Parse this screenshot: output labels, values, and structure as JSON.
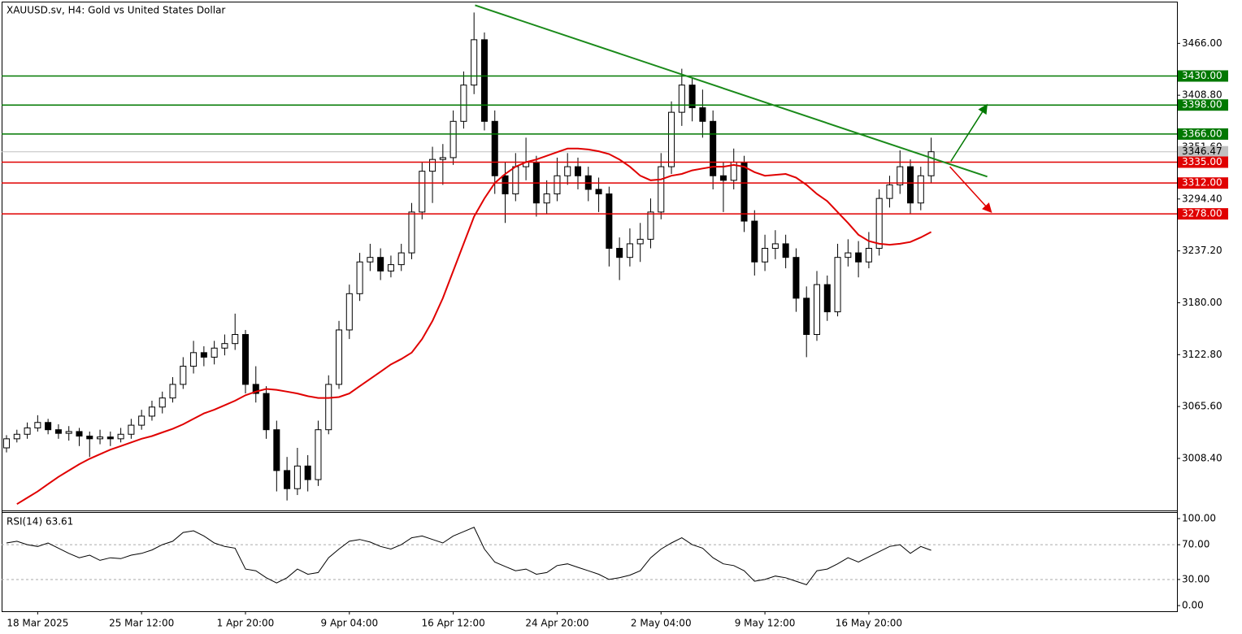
{
  "chart_data": [
    {
      "type": "candlestick",
      "title": "XAUUSD.sv, H4:  Gold vs United States Dollar",
      "categories": [
        null,
        null,
        null,
        "18 Mar 2025",
        null,
        null,
        null,
        null,
        null,
        null,
        null,
        null,
        null,
        "25 Mar 12:00",
        null,
        null,
        null,
        null,
        null,
        null,
        null,
        null,
        null,
        "1 Apr 20:00",
        null,
        null,
        null,
        null,
        null,
        null,
        null,
        null,
        null,
        "9 Apr 04:00",
        null,
        null,
        null,
        null,
        null,
        null,
        null,
        null,
        null,
        "16 Apr 12:00",
        null,
        null,
        null,
        null,
        null,
        null,
        null,
        null,
        null,
        "24 Apr 20:00",
        null,
        null,
        null,
        null,
        null,
        null,
        null,
        null,
        null,
        "2 May 04:00",
        null,
        null,
        null,
        null,
        null,
        null,
        null,
        null,
        null,
        "9 May 12:00",
        null,
        null,
        null,
        null,
        null,
        null,
        null,
        null,
        null,
        "16 May 20:00",
        null,
        null,
        null,
        null,
        null,
        null
      ],
      "ohlc": [
        [
          3020,
          3034,
          3015,
          3030
        ],
        [
          3030,
          3040,
          3026,
          3035
        ],
        [
          3035,
          3048,
          3030,
          3042
        ],
        [
          3042,
          3056,
          3038,
          3048
        ],
        [
          3048,
          3052,
          3035,
          3040
        ],
        [
          3040,
          3046,
          3030,
          3036
        ],
        [
          3036,
          3044,
          3028,
          3038
        ],
        [
          3038,
          3042,
          3022,
          3033
        ],
        [
          3033,
          3038,
          3010,
          3030
        ],
        [
          3030,
          3040,
          3024,
          3032
        ],
        [
          3032,
          3038,
          3022,
          3030
        ],
        [
          3030,
          3042,
          3026,
          3035
        ],
        [
          3035,
          3052,
          3030,
          3045
        ],
        [
          3045,
          3062,
          3040,
          3055
        ],
        [
          3055,
          3072,
          3050,
          3065
        ],
        [
          3065,
          3082,
          3058,
          3075
        ],
        [
          3075,
          3098,
          3070,
          3090
        ],
        [
          3090,
          3120,
          3085,
          3110
        ],
        [
          3110,
          3138,
          3102,
          3125
        ],
        [
          3125,
          3132,
          3110,
          3120
        ],
        [
          3120,
          3138,
          3112,
          3130
        ],
        [
          3130,
          3145,
          3122,
          3135
        ],
        [
          3135,
          3168,
          3128,
          3145
        ],
        [
          3145,
          3150,
          3080,
          3090
        ],
        [
          3090,
          3110,
          3070,
          3080
        ],
        [
          3080,
          3088,
          3030,
          3040
        ],
        [
          3040,
          3050,
          2972,
          2995
        ],
        [
          2995,
          3010,
          2962,
          2975
        ],
        [
          2975,
          3020,
          2968,
          3000
        ],
        [
          3000,
          3012,
          2972,
          2985
        ],
        [
          2985,
          3050,
          2978,
          3040
        ],
        [
          3040,
          3100,
          3035,
          3090
        ],
        [
          3090,
          3160,
          3085,
          3150
        ],
        [
          3150,
          3200,
          3140,
          3190
        ],
        [
          3190,
          3235,
          3182,
          3225
        ],
        [
          3225,
          3245,
          3215,
          3230
        ],
        [
          3230,
          3240,
          3205,
          3215
        ],
        [
          3215,
          3232,
          3208,
          3222
        ],
        [
          3222,
          3245,
          3215,
          3235
        ],
        [
          3235,
          3290,
          3228,
          3280
        ],
        [
          3280,
          3335,
          3272,
          3325
        ],
        [
          3325,
          3352,
          3290,
          3338
        ],
        [
          3338,
          3355,
          3310,
          3340
        ],
        [
          3340,
          3392,
          3332,
          3380
        ],
        [
          3380,
          3435,
          3372,
          3420
        ],
        [
          3420,
          3500,
          3410,
          3470
        ],
        [
          3470,
          3478,
          3370,
          3380
        ],
        [
          3380,
          3392,
          3300,
          3320
        ],
        [
          3320,
          3335,
          3268,
          3300
        ],
        [
          3300,
          3345,
          3292,
          3330
        ],
        [
          3330,
          3362,
          3315,
          3335
        ],
        [
          3335,
          3342,
          3275,
          3290
        ],
        [
          3290,
          3315,
          3278,
          3300
        ],
        [
          3300,
          3340,
          3292,
          3320
        ],
        [
          3320,
          3345,
          3310,
          3330
        ],
        [
          3330,
          3340,
          3305,
          3320
        ],
        [
          3320,
          3330,
          3292,
          3305
        ],
        [
          3305,
          3318,
          3280,
          3300
        ],
        [
          3300,
          3308,
          3220,
          3240
        ],
        [
          3240,
          3252,
          3205,
          3230
        ],
        [
          3230,
          3262,
          3220,
          3245
        ],
        [
          3245,
          3268,
          3225,
          3250
        ],
        [
          3250,
          3295,
          3240,
          3280
        ],
        [
          3280,
          3345,
          3272,
          3330
        ],
        [
          3330,
          3402,
          3322,
          3390
        ],
        [
          3390,
          3438,
          3375,
          3420
        ],
        [
          3420,
          3428,
          3380,
          3395
        ],
        [
          3395,
          3415,
          3362,
          3380
        ],
        [
          3380,
          3392,
          3305,
          3320
        ],
        [
          3320,
          3335,
          3280,
          3315
        ],
        [
          3315,
          3350,
          3305,
          3335
        ],
        [
          3335,
          3342,
          3258,
          3270
        ],
        [
          3270,
          3282,
          3210,
          3225
        ],
        [
          3225,
          3255,
          3215,
          3240
        ],
        [
          3240,
          3260,
          3228,
          3245
        ],
        [
          3245,
          3255,
          3218,
          3230
        ],
        [
          3230,
          3240,
          3170,
          3185
        ],
        [
          3185,
          3198,
          3120,
          3145
        ],
        [
          3145,
          3215,
          3138,
          3200
        ],
        [
          3200,
          3210,
          3160,
          3170
        ],
        [
          3170,
          3245,
          3165,
          3230
        ],
        [
          3230,
          3250,
          3220,
          3235
        ],
        [
          3235,
          3248,
          3208,
          3225
        ],
        [
          3225,
          3258,
          3218,
          3240
        ],
        [
          3240,
          3305,
          3232,
          3295
        ],
        [
          3295,
          3320,
          3285,
          3310
        ],
        [
          3310,
          3348,
          3300,
          3330
        ],
        [
          3330,
          3338,
          3278,
          3290
        ],
        [
          3290,
          3330,
          3282,
          3320
        ],
        [
          3320,
          3362,
          3312,
          3346.47
        ]
      ],
      "ma": {
        "color": "#e00000",
        "values": [
          null,
          2958,
          2965,
          2972,
          2980,
          2988,
          2995,
          3002,
          3008,
          3013,
          3018,
          3022,
          3026,
          3030,
          3033,
          3037,
          3041,
          3046,
          3052,
          3058,
          3062,
          3067,
          3072,
          3078,
          3082,
          3085,
          3084,
          3082,
          3080,
          3077,
          3075,
          3075,
          3076,
          3080,
          3088,
          3096,
          3104,
          3112,
          3118,
          3125,
          3140,
          3160,
          3185,
          3215,
          3245,
          3275,
          3295,
          3312,
          3322,
          3330,
          3335,
          3338,
          3342,
          3346,
          3350,
          3350,
          3349,
          3347,
          3344,
          3338,
          3330,
          3320,
          3315,
          3316,
          3320,
          3322,
          3326,
          3328,
          3330,
          3330,
          3332,
          3330,
          3324,
          3320,
          3321,
          3322,
          3318,
          3310,
          3300,
          3292,
          3280,
          3268,
          3255,
          3248,
          3245,
          3244,
          3245,
          3247,
          3252,
          3258
        ]
      },
      "levels": [
        {
          "value": 3430,
          "label": "3430.00",
          "color": "#007800"
        },
        {
          "value": 3398,
          "label": "3398.00",
          "color": "#007800"
        },
        {
          "value": 3366,
          "label": "3366.00",
          "color": "#007800"
        },
        {
          "value": 3335,
          "label": "3335.00",
          "color": "#e00000"
        },
        {
          "value": 3312,
          "label": "3312.00",
          "color": "#e00000"
        },
        {
          "value": 3278,
          "label": "3278.00",
          "color": "#e00000"
        }
      ],
      "current_price": {
        "value": 3346.47,
        "label": "3346.47",
        "color": "#c0c0c0"
      },
      "trendline": {
        "x": [
          45.1,
          94.4
        ],
        "y": [
          3508,
          3319
        ],
        "color": "#1a8a1a"
      },
      "arrows": [
        {
          "x": [
            90.9,
            94.3
          ],
          "y": [
            3336,
            3397
          ],
          "color": "#007800"
        },
        {
          "x": [
            90.8,
            94.7
          ],
          "y": [
            3330,
            3281
          ],
          "color": "#e00000"
        }
      ],
      "xlim": [
        -0.47,
        112.66
      ],
      "ylim": [
        2951,
        3512
      ],
      "yticks": [
        {
          "value": 3008.4,
          "label": "3008.40"
        },
        {
          "value": 3065.6,
          "label": "3065.60"
        },
        {
          "value": 3122.8,
          "label": "3122.80"
        },
        {
          "value": 3180,
          "label": "3180.00"
        },
        {
          "value": 3237.2,
          "label": "3237.20"
        },
        {
          "value": 3294.4,
          "label": "3294.40"
        },
        {
          "value": 3351.6,
          "label": "3351.60"
        },
        {
          "value": 3408.8,
          "label": "3408.80"
        },
        {
          "value": 3466,
          "label": "3466.00"
        }
      ]
    },
    {
      "type": "line",
      "title": "RSI(14) 63.61",
      "color": "#000000",
      "values": [
        72,
        74,
        70,
        68,
        72,
        66,
        60,
        55,
        58,
        52,
        55,
        54,
        58,
        60,
        64,
        70,
        74,
        84,
        86,
        80,
        72,
        68,
        66,
        42,
        40,
        32,
        26,
        32,
        42,
        36,
        38,
        55,
        65,
        74,
        76,
        73,
        68,
        65,
        70,
        78,
        80,
        76,
        72,
        80,
        85,
        90,
        65,
        50,
        45,
        40,
        42,
        36,
        38,
        46,
        48,
        44,
        40,
        36,
        30,
        32,
        35,
        40,
        55,
        65,
        72,
        78,
        70,
        66,
        55,
        48,
        46,
        40,
        28,
        30,
        34,
        32,
        28,
        24,
        40,
        42,
        48,
        55,
        50,
        56,
        62,
        68,
        70,
        60,
        68,
        63.61
      ],
      "dashed_levels": [
        70,
        30
      ],
      "xlim": [
        -0.47,
        112.66
      ],
      "ylim": [
        -6.5,
        107.5
      ],
      "yticks": [
        {
          "value": 100,
          "label": "100.00"
        },
        {
          "value": 70,
          "label": "70.00"
        },
        {
          "value": 30,
          "label": "30.00"
        },
        {
          "value": 0,
          "label": "0.00"
        }
      ]
    }
  ]
}
